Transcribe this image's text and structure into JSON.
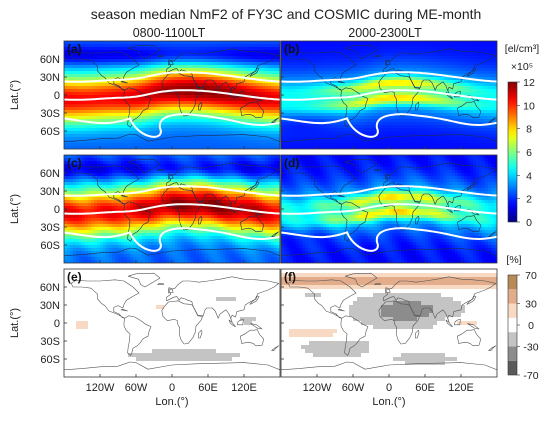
{
  "figure": {
    "title": "season median NmF2 of FY3C and COSMIC during ME-month",
    "column_titles": [
      "0800-1100LT",
      "2000-2300LT"
    ]
  },
  "chart_data": {
    "type": "heatmap",
    "panels": [
      {
        "label": "(a)",
        "row": 0,
        "col": 0,
        "kind": "nmf2",
        "local_time": "0800-1100LT"
      },
      {
        "label": "(b)",
        "row": 0,
        "col": 1,
        "kind": "nmf2",
        "local_time": "2000-2300LT"
      },
      {
        "label": "(c)",
        "row": 1,
        "col": 0,
        "kind": "nmf2",
        "local_time": "0800-1100LT"
      },
      {
        "label": "(d)",
        "row": 1,
        "col": 1,
        "kind": "nmf2",
        "local_time": "2000-2300LT"
      },
      {
        "label": "(e)",
        "row": 2,
        "col": 0,
        "kind": "diff",
        "local_time": "0800-1100LT"
      },
      {
        "label": "(f)",
        "row": 2,
        "col": 1,
        "kind": "diff",
        "local_time": "2000-2300LT"
      }
    ],
    "xlabel": "Lon.(°)",
    "ylabel": "Lat.(°)",
    "xlim": [
      -180,
      180
    ],
    "ylim": [
      -90,
      90
    ],
    "x_ticks": [
      {
        "value": -120,
        "label": "120W"
      },
      {
        "value": -60,
        "label": "60W"
      },
      {
        "value": 0,
        "label": "0"
      },
      {
        "value": 60,
        "label": "60E"
      },
      {
        "value": 120,
        "label": "120E"
      }
    ],
    "y_ticks": [
      {
        "value": 60,
        "label": "60N"
      },
      {
        "value": 30,
        "label": "30N"
      },
      {
        "value": 0,
        "label": "0"
      },
      {
        "value": -30,
        "label": "30S"
      },
      {
        "value": -60,
        "label": "60S"
      }
    ],
    "colorbar_nmf2": {
      "unit_label": "[el/cm³]",
      "scale_label": "×10⁵",
      "range": [
        0,
        12
      ],
      "ticks": [
        0,
        2,
        4,
        6,
        8,
        10,
        12
      ],
      "colormap": "jet"
    },
    "colorbar_diff": {
      "unit_label": "[%]",
      "range": [
        -70,
        70
      ],
      "ticks": [
        -70,
        -30,
        0,
        30,
        70
      ],
      "levels": [
        {
          "from": -70,
          "to": -50,
          "color": "#5a5a5a"
        },
        {
          "from": -50,
          "to": -30,
          "color": "#8c8c8c"
        },
        {
          "from": -30,
          "to": -10,
          "color": "#c4c4c4"
        },
        {
          "from": -10,
          "to": 10,
          "color": "#ffffff"
        },
        {
          "from": 10,
          "to": 30,
          "color": "#f7d9c4"
        },
        {
          "from": 30,
          "to": 50,
          "color": "#e3ad8c"
        },
        {
          "from": 50,
          "to": 70,
          "color": "#b88a56"
        }
      ]
    },
    "grid": false
  }
}
